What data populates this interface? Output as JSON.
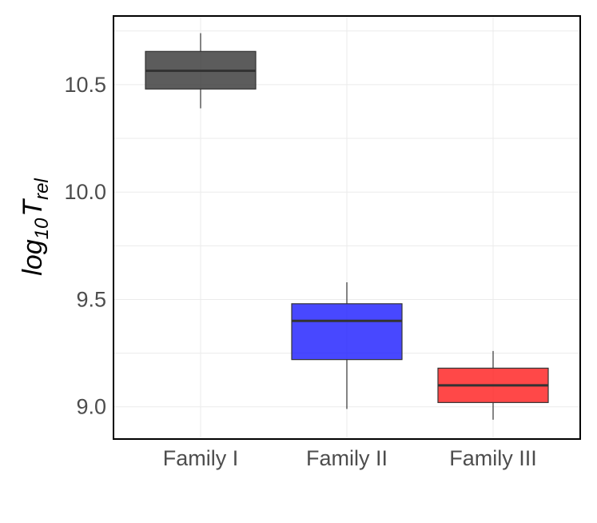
{
  "chart_data": {
    "type": "box",
    "title": "",
    "xlabel": "",
    "ylabel": {
      "base": "log",
      "base_sub": "10",
      "symbol": "T",
      "symbol_sub": "rel"
    },
    "ylim": [
      8.85,
      10.82
    ],
    "yticks": [
      "9.0",
      "9.5",
      "10.0",
      "10.5"
    ],
    "grid": true,
    "legend": "none",
    "categories": [
      "Family I",
      "Family II",
      "Family III"
    ],
    "boxes": [
      {
        "category": "Family I",
        "whisker_low": 10.39,
        "q1": 10.48,
        "median": 10.565,
        "q3": 10.655,
        "whisker_high": 10.74,
        "color": "#333333"
      },
      {
        "category": "Family II",
        "whisker_low": 8.99,
        "q1": 9.22,
        "median": 9.4,
        "q3": 9.48,
        "whisker_high": 9.58,
        "color": "#1a1aff"
      },
      {
        "category": "Family III",
        "whisker_low": 8.94,
        "q1": 9.02,
        "median": 9.1,
        "q3": 9.18,
        "whisker_high": 9.26,
        "color": "#ff1a1a"
      }
    ]
  }
}
